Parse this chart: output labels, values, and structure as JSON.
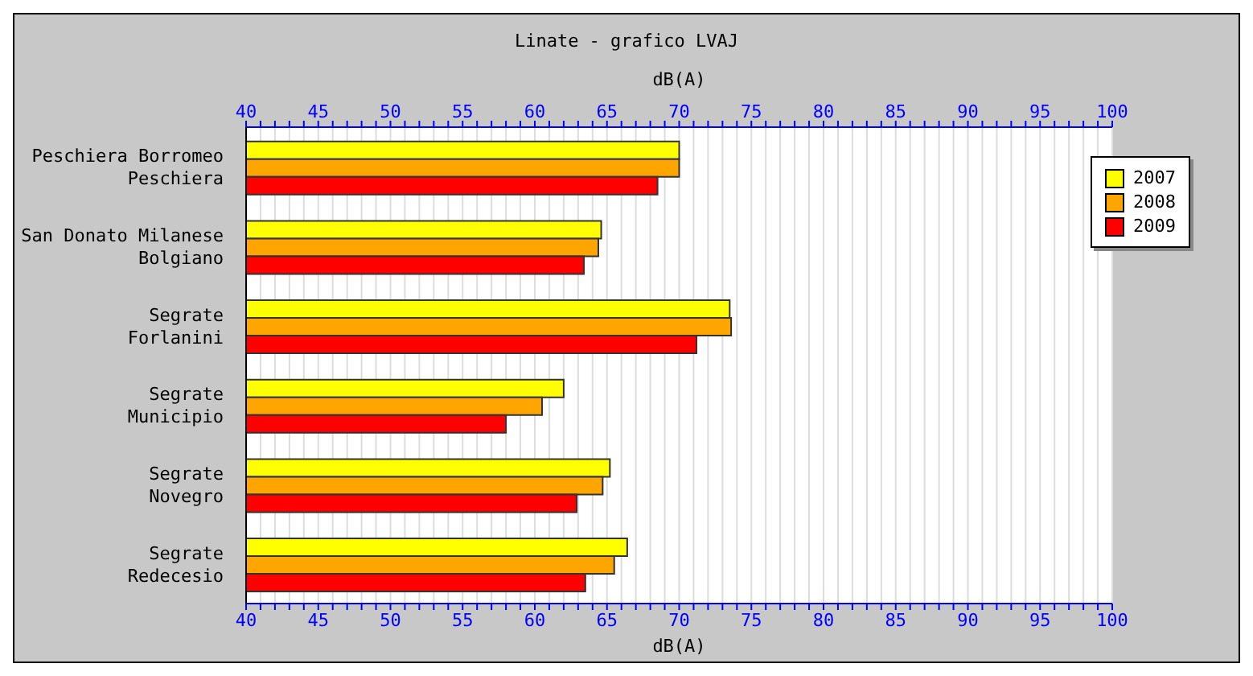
{
  "chart_data": {
    "type": "bar",
    "orientation": "horizontal",
    "title": "Linate - grafico LVAJ",
    "xlabel": "dB(A)",
    "x2label": "dB(A)",
    "categories": [
      "Peschiera Borromeo\nPeschiera",
      "San Donato Milanese\nBolgiano",
      "Segrate\nForlanini",
      "Segrate\nMunicipio",
      "Segrate\nNovegro",
      "Segrate\nRedecesio"
    ],
    "series": [
      {
        "name": "2007",
        "color": "#ffff00",
        "values": [
          70.0,
          64.6,
          73.5,
          62.0,
          65.2,
          66.4
        ]
      },
      {
        "name": "2008",
        "color": "#ffa500",
        "values": [
          70.0,
          64.4,
          73.6,
          60.5,
          64.7,
          65.5
        ]
      },
      {
        "name": "2009",
        "color": "#ff0000",
        "values": [
          68.5,
          63.4,
          71.2,
          58.0,
          62.9,
          63.5
        ]
      }
    ],
    "xlim": [
      40,
      100
    ],
    "x2lim": [
      40,
      100
    ],
    "xticks": [
      40,
      {
        "value": 41,
        "label": null
      },
      {
        "value": 42,
        "label": null
      },
      {
        "value": 43,
        "label": null
      },
      {
        "value": 44,
        "label": null
      },
      45,
      {
        "value": 46,
        "label": null
      },
      {
        "value": 47,
        "label": null
      },
      {
        "value": 48,
        "label": null
      },
      {
        "value": 49,
        "label": null
      },
      50,
      {
        "value": 51,
        "label": null
      },
      {
        "value": 52,
        "label": null
      },
      {
        "value": 53,
        "label": null
      },
      {
        "value": 54,
        "label": null
      },
      55,
      {
        "value": 56,
        "label": null
      },
      {
        "value": 57,
        "label": null
      },
      {
        "value": 58,
        "label": null
      },
      {
        "value": 59,
        "label": null
      },
      60,
      {
        "value": 61,
        "label": null
      },
      {
        "value": 62,
        "label": null
      },
      {
        "value": 63,
        "label": null
      },
      {
        "value": 64,
        "label": null
      },
      65,
      {
        "value": 66,
        "label": null
      },
      {
        "value": 67,
        "label": null
      },
      {
        "value": 68,
        "label": null
      },
      {
        "value": 69,
        "label": null
      },
      70,
      {
        "value": 71,
        "label": null
      },
      {
        "value": 72,
        "label": null
      },
      {
        "value": 73,
        "label": null
      },
      {
        "value": 74,
        "label": null
      },
      75,
      {
        "value": 76,
        "label": null
      },
      {
        "value": 77,
        "label": null
      },
      {
        "value": 78,
        "label": null
      },
      {
        "value": 79,
        "label": null
      },
      80,
      {
        "value": 81,
        "label": null
      },
      {
        "value": 82,
        "label": null
      },
      {
        "value": 83,
        "label": null
      },
      {
        "value": 84,
        "label": null
      },
      85,
      {
        "value": 86,
        "label": null
      },
      {
        "value": 87,
        "label": null
      },
      {
        "value": 88,
        "label": null
      },
      {
        "value": 89,
        "label": null
      },
      90,
      {
        "value": 91,
        "label": null
      },
      {
        "value": 92,
        "label": null
      },
      {
        "value": 93,
        "label": null
      },
      {
        "value": 94,
        "label": null
      },
      95,
      {
        "value": 96,
        "label": null
      },
      {
        "value": 97,
        "label": null
      },
      {
        "value": 98,
        "label": null
      },
      {
        "value": 99,
        "label": null
      },
      100
    ],
    "x2ticks": [
      40,
      {
        "value": 41,
        "label": null
      },
      {
        "value": 42,
        "label": null
      },
      {
        "value": 43,
        "label": null
      },
      {
        "value": 44,
        "label": null
      },
      45,
      {
        "value": 46,
        "label": null
      },
      {
        "value": 47,
        "label": null
      },
      {
        "value": 48,
        "label": null
      },
      {
        "value": 49,
        "label": null
      },
      50,
      {
        "value": 51,
        "label": null
      },
      {
        "value": 52,
        "label": null
      },
      {
        "value": 53,
        "label": null
      },
      {
        "value": 54,
        "label": null
      },
      55,
      {
        "value": 56,
        "label": null
      },
      {
        "value": 57,
        "label": null
      },
      {
        "value": 58,
        "label": null
      },
      {
        "value": 59,
        "label": null
      },
      60,
      {
        "value": 61,
        "label": null
      },
      {
        "value": 62,
        "label": null
      },
      {
        "value": 63,
        "label": null
      },
      {
        "value": 64,
        "label": null
      },
      65,
      {
        "value": 66,
        "label": null
      },
      {
        "value": 67,
        "label": null
      },
      {
        "value": 68,
        "label": null
      },
      {
        "value": 69,
        "label": null
      },
      70,
      {
        "value": 71,
        "label": null
      },
      {
        "value": 72,
        "label": null
      },
      {
        "value": 73,
        "label": null
      },
      {
        "value": 74,
        "label": null
      },
      75,
      {
        "value": 76,
        "label": null
      },
      {
        "value": 77,
        "label": null
      },
      {
        "value": 78,
        "label": null
      },
      {
        "value": 79,
        "label": null
      },
      80,
      {
        "value": 81,
        "label": null
      },
      {
        "value": 82,
        "label": null
      },
      {
        "value": 83,
        "label": null
      },
      {
        "value": 84,
        "label": null
      },
      85,
      {
        "value": 86,
        "label": null
      },
      {
        "value": 87,
        "label": null
      },
      {
        "value": 88,
        "label": null
      },
      {
        "value": 89,
        "label": null
      },
      90,
      {
        "value": 91,
        "label": null
      },
      {
        "value": 92,
        "label": null
      },
      {
        "value": 93,
        "label": null
      },
      {
        "value": 94,
        "label": null
      },
      95,
      {
        "value": 96,
        "label": null
      },
      {
        "value": 97,
        "label": null
      },
      {
        "value": 98,
        "label": null
      },
      {
        "value": 99,
        "label": null
      },
      100
    ],
    "grid": "x",
    "legend": "top right"
  }
}
